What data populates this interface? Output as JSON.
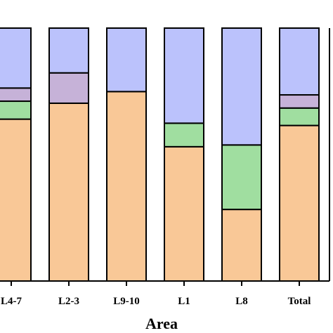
{
  "chart_data": {
    "type": "bar",
    "stacked": true,
    "categories": [
      "L4-7",
      "L2-3",
      "L9-10",
      "L1",
      "L8",
      "Total"
    ],
    "series": [
      {
        "color": "#F9C897",
        "values": [
          64.0,
          70.3,
          74.9,
          53.1,
          28.3,
          61.5
        ]
      },
      {
        "color": "#A0DEA0",
        "values": [
          7.1,
          0,
          0,
          9.3,
          25.5,
          6.9
        ]
      },
      {
        "color": "#C6B2D8",
        "values": [
          5.2,
          12.0,
          0,
          0,
          0,
          5.2
        ]
      },
      {
        "color": "#BBC2FC",
        "values": [
          23.7,
          17.7,
          25.1,
          37.6,
          46.2,
          26.4
        ]
      }
    ],
    "xlabel": "Area",
    "ylabel": "",
    "ylim": [
      0,
      100
    ],
    "grid": false,
    "legend": "none"
  }
}
